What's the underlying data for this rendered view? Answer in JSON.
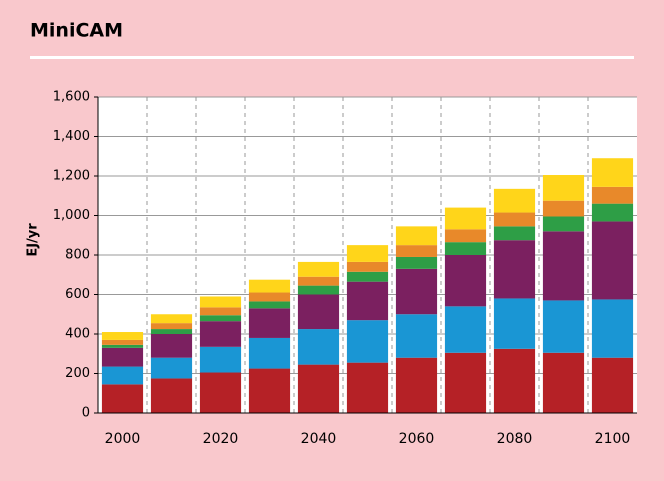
{
  "chart_data": {
    "type": "stacked_bar",
    "title": "MiniCAM",
    "y_label": "EJ/yr",
    "categories": [
      "2000",
      null,
      "2020",
      null,
      "2040",
      null,
      "2060",
      null,
      "2080",
      null,
      "2100"
    ],
    "series": [
      {
        "color": "#b52126",
        "values": [
          145,
          175,
          205,
          225,
          245,
          255,
          280,
          305,
          325,
          305,
          280
        ]
      },
      {
        "color": "#1a96d4",
        "values": [
          90,
          105,
          130,
          155,
          180,
          215,
          220,
          235,
          255,
          265,
          295
        ]
      },
      {
        "color": "#7b2060",
        "values": [
          95,
          120,
          130,
          150,
          175,
          195,
          230,
          260,
          295,
          350,
          395
        ]
      },
      {
        "color": "#2e9e46",
        "values": [
          15,
          25,
          30,
          35,
          45,
          50,
          60,
          65,
          70,
          75,
          90
        ]
      },
      {
        "color": "#e8892a",
        "values": [
          25,
          30,
          40,
          45,
          45,
          50,
          60,
          65,
          70,
          80,
          85
        ]
      },
      {
        "color": "#ffd51a",
        "values": [
          40,
          45,
          55,
          65,
          75,
          85,
          95,
          110,
          120,
          130,
          145
        ]
      }
    ],
    "ylim": [
      0,
      1600
    ],
    "yticks": [
      0,
      200,
      400,
      600,
      800,
      {
        "value": 1000,
        "label": "1,000"
      },
      {
        "value": 1200,
        "label": "1,200"
      },
      {
        "value": 1400,
        "label": "1,400"
      },
      {
        "value": 1600,
        "label": "1,600"
      }
    ],
    "grid": true
  }
}
